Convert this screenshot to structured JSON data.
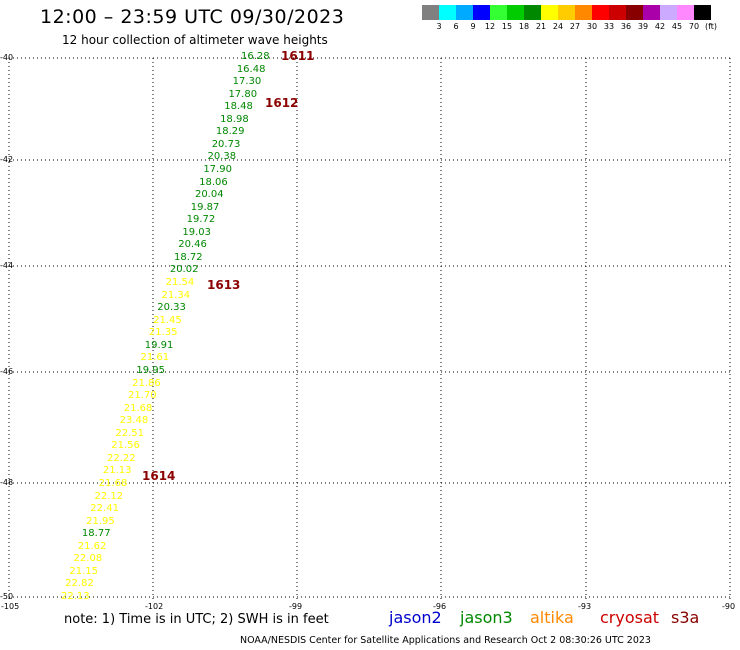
{
  "header": {
    "title": "12:00 – 23:59 UTC 09/30/2023",
    "subtitle": "12 hour collection of altimeter wave heights"
  },
  "colorbar": {
    "colors": [
      "#808080",
      "#00ffff",
      "#00aaff",
      "#0000ff",
      "#33ff33",
      "#00cc00",
      "#008800",
      "#ffff00",
      "#ffcc00",
      "#ff8800",
      "#ff0000",
      "#cc0000",
      "#880000",
      "#aa00aa",
      "#ccaaff",
      "#ff88ff",
      "#000000"
    ],
    "labels": [
      "3",
      "6",
      "9",
      "12",
      "15",
      "18",
      "21",
      "24",
      "27",
      "30",
      "33",
      "36",
      "39",
      "42",
      "45",
      "70",
      "(ft)"
    ]
  },
  "axes": {
    "lat_labels": [
      "-40",
      "-42",
      "-44",
      "-46",
      "-48",
      "-50"
    ],
    "lon_labels": [
      "-105",
      "-102",
      "-99",
      "-96",
      "-93",
      "-90"
    ]
  },
  "observations": [
    {
      "v": "16.28",
      "c": "#008800"
    },
    {
      "v": "16.48",
      "c": "#008800"
    },
    {
      "v": "17.30",
      "c": "#008800"
    },
    {
      "v": "17.80",
      "c": "#008800"
    },
    {
      "v": "18.48",
      "c": "#008800"
    },
    {
      "v": "18.98",
      "c": "#008800"
    },
    {
      "v": "18.29",
      "c": "#008800"
    },
    {
      "v": "20.73",
      "c": "#008800"
    },
    {
      "v": "20.38",
      "c": "#008800"
    },
    {
      "v": "17.90",
      "c": "#008800"
    },
    {
      "v": "18.06",
      "c": "#008800"
    },
    {
      "v": "20.04",
      "c": "#008800"
    },
    {
      "v": "19.87",
      "c": "#008800"
    },
    {
      "v": "19.72",
      "c": "#008800"
    },
    {
      "v": "19.03",
      "c": "#008800"
    },
    {
      "v": "20.46",
      "c": "#008800"
    },
    {
      "v": "18.72",
      "c": "#008800"
    },
    {
      "v": "20.02",
      "c": "#008800"
    },
    {
      "v": "21.54",
      "c": "#ffff00"
    },
    {
      "v": "21.34",
      "c": "#ffff00"
    },
    {
      "v": "20.33",
      "c": "#008800"
    },
    {
      "v": "21.45",
      "c": "#ffff00"
    },
    {
      "v": "21.35",
      "c": "#ffff00"
    },
    {
      "v": "19.91",
      "c": "#008800"
    },
    {
      "v": "21.61",
      "c": "#ffff00"
    },
    {
      "v": "19.95",
      "c": "#008800"
    },
    {
      "v": "21.86",
      "c": "#ffff00"
    },
    {
      "v": "21.70",
      "c": "#ffff00"
    },
    {
      "v": "21.68",
      "c": "#ffff00"
    },
    {
      "v": "23.48",
      "c": "#ffff00"
    },
    {
      "v": "22.51",
      "c": "#ffff00"
    },
    {
      "v": "21.56",
      "c": "#ffff00"
    },
    {
      "v": "22.22",
      "c": "#ffff00"
    },
    {
      "v": "21.13",
      "c": "#ffff00"
    },
    {
      "v": "21.68",
      "c": "#ffff00"
    },
    {
      "v": "22.12",
      "c": "#ffff00"
    },
    {
      "v": "22.41",
      "c": "#ffff00"
    },
    {
      "v": "21.95",
      "c": "#ffff00"
    },
    {
      "v": "18.77",
      "c": "#008800"
    },
    {
      "v": "21.62",
      "c": "#ffff00"
    },
    {
      "v": "22.08",
      "c": "#ffff00"
    },
    {
      "v": "21.15",
      "c": "#ffff00"
    },
    {
      "v": "22.82",
      "c": "#ffff00"
    },
    {
      "v": "22.13",
      "c": "#ffff00"
    }
  ],
  "pass_times": [
    "1611",
    "1612",
    "1613",
    "1614"
  ],
  "footer": {
    "note": "note:  1) Time is in UTC; 2) SWH is in feet",
    "legend": [
      {
        "label": "jason2",
        "color": "#0000cc"
      },
      {
        "label": "jason3",
        "color": "#008800"
      },
      {
        "label": "altika",
        "color": "#ff8800"
      },
      {
        "label": "cryosat",
        "color": "#cc0000"
      },
      {
        "label": "s3a",
        "color": "#880000"
      }
    ],
    "credit": "NOAA/NESDIS Center for Satellite Applications and Research    Oct  2 08:30:26 UTC 2023"
  }
}
